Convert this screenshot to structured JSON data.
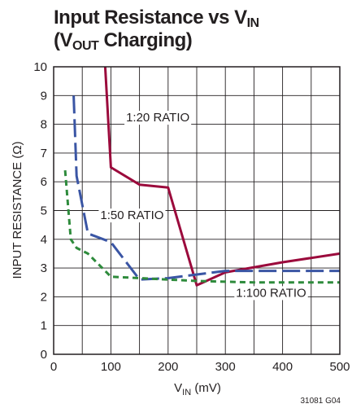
{
  "title": {
    "line1_main": "Input Resistance vs V",
    "line1_sub": "IN",
    "line2_open": "(V",
    "line2_sub": "OUT",
    "line2_rest": " Charging)"
  },
  "figure_code": "31081 G04",
  "chart_data": {
    "type": "line",
    "title": "Input Resistance vs VIN (VOUT Charging)",
    "xlabel": {
      "main": "V",
      "sub": "IN",
      "rest": " (mV)"
    },
    "ylabel": "INPUT RESISTANCE (Ω)",
    "xlim": [
      0,
      500
    ],
    "ylim": [
      0,
      10
    ],
    "xticks": [
      0,
      100,
      200,
      300,
      400,
      500
    ],
    "yticks": [
      0,
      1,
      2,
      3,
      4,
      5,
      6,
      7,
      8,
      9,
      10
    ],
    "x_minor_step": 50,
    "grid": true,
    "series": [
      {
        "name": "1:20 RATIO",
        "color": "#9b0a3c",
        "dash": "solid",
        "points": [
          [
            90,
            10
          ],
          [
            100,
            6.5
          ],
          [
            150,
            5.9
          ],
          [
            200,
            5.8
          ],
          [
            250,
            2.4
          ],
          [
            300,
            2.85
          ],
          [
            400,
            3.2
          ],
          [
            500,
            3.5
          ]
        ]
      },
      {
        "name": "1:50 RATIO",
        "color": "#3a55a4",
        "dash": "long-dash",
        "points": [
          [
            35,
            9.0
          ],
          [
            40,
            6.2
          ],
          [
            60,
            4.2
          ],
          [
            100,
            3.9
          ],
          [
            150,
            2.6
          ],
          [
            200,
            2.65
          ],
          [
            300,
            2.9
          ],
          [
            500,
            2.9
          ]
        ]
      },
      {
        "name": "1:100 RATIO",
        "color": "#2e8b3c",
        "dash": "short-dash",
        "points": [
          [
            20,
            6.4
          ],
          [
            30,
            4.0
          ],
          [
            40,
            3.7
          ],
          [
            60,
            3.5
          ],
          [
            100,
            2.7
          ],
          [
            150,
            2.65
          ],
          [
            250,
            2.55
          ],
          [
            350,
            2.5
          ],
          [
            500,
            2.5
          ]
        ]
      }
    ],
    "annotations": [
      {
        "text": "1:20 RATIO",
        "x": 182,
        "y": 8.1
      },
      {
        "text": "1:50 RATIO",
        "x": 137,
        "y": 4.7
      },
      {
        "text": "1:100 RATIO",
        "x": 380,
        "y": 2.0
      }
    ]
  }
}
